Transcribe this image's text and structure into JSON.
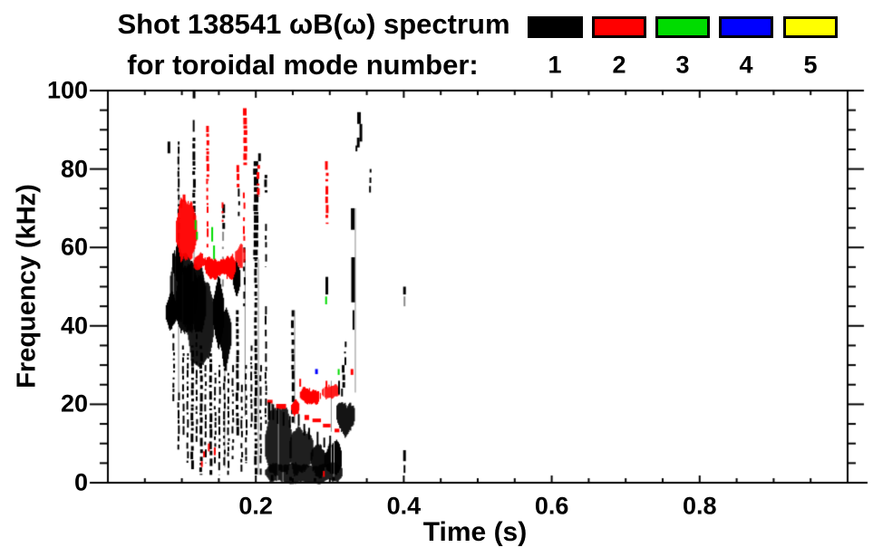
{
  "header": {
    "title_line1": "Shot 138541 ωB(ω) spectrum",
    "title_line2": "for toroidal mode number:"
  },
  "legend": {
    "entries": [
      {
        "label": "1",
        "color": "#000000"
      },
      {
        "label": "2",
        "color": "#ff0000"
      },
      {
        "label": "3",
        "color": "#00dc00"
      },
      {
        "label": "4",
        "color": "#0000ff"
      },
      {
        "label": "5",
        "color": "#ffff00"
      }
    ]
  },
  "chart_data": {
    "type": "scatter",
    "subtype": "mode-spectrogram",
    "title": "Shot 138541 ωB(ω) spectrum for toroidal mode number: 1 2 3 4 5",
    "xlabel": "Time (s)",
    "ylabel": "Frequency (kHz)",
    "xlim": [
      0,
      1.0
    ],
    "ylim": [
      0,
      100
    ],
    "grid": false,
    "legend_position": "top-right",
    "axis_color": "#000000",
    "background": "#ffffff",
    "xticks": {
      "major": [
        {
          "v": 0.2,
          "label": "0.2"
        },
        {
          "v": 0.4,
          "label": "0.4"
        },
        {
          "v": 0.6,
          "label": "0.6"
        },
        {
          "v": 0.8,
          "label": "0.8"
        }
      ],
      "minor_step": 0.05
    },
    "yticks": {
      "major": [
        {
          "v": 0,
          "label": "0"
        },
        {
          "v": 20,
          "label": "20"
        },
        {
          "v": 40,
          "label": "40"
        },
        {
          "v": 60,
          "label": "60"
        },
        {
          "v": 80,
          "label": "80"
        },
        {
          "v": 100,
          "label": "100"
        }
      ],
      "minor_step": 5
    },
    "palette": {
      "k": "#000000",
      "r": "#ff0000",
      "g": "#00dc00",
      "b": "#0000ff",
      "y": "#ffff00",
      "gy": "#8a8a8a"
    },
    "marks": {
      "vlines": [
        [
          "gy",
          0.0956,
          23,
          87,
          1
        ],
        [
          "gy",
          0.1165,
          47,
          61,
          1
        ],
        [
          "gy",
          0.158,
          4,
          33,
          1
        ],
        [
          "gy",
          0.1855,
          17,
          60,
          1
        ],
        [
          "gy",
          0.2035,
          2,
          57,
          1
        ],
        [
          "gy",
          0.2525,
          15,
          44,
          1
        ],
        [
          "gy",
          0.302,
          13,
          26,
          1
        ],
        [
          "gy",
          0.3345,
          23,
          70,
          1
        ]
      ],
      "vstreaks": [
        [
          "k",
          0.0956,
          58,
          87,
          2,
          1,
          1
        ],
        [
          "k",
          0.1165,
          67,
          88,
          3,
          2,
          0.8
        ],
        [
          "r",
          0.135,
          77,
          91,
          3,
          3,
          0.7
        ],
        [
          "r",
          0.1345,
          60,
          77,
          2,
          4,
          1.6
        ],
        [
          "k",
          0.156,
          64,
          71,
          3,
          5,
          1
        ],
        [
          "gy",
          0.156,
          50,
          64,
          2,
          6,
          1.8
        ],
        [
          "r",
          0.1555,
          66.5,
          71.5,
          2,
          7,
          1.2
        ],
        [
          "r",
          0.176,
          75,
          81,
          3,
          8,
          1
        ],
        [
          "k",
          0.177,
          68,
          75,
          2,
          9,
          1.2
        ],
        [
          "r",
          0.1855,
          81,
          95.5,
          4,
          10,
          0.6
        ],
        [
          "r",
          0.184,
          60,
          74,
          2,
          11,
          1.6
        ],
        [
          "k",
          0.1845,
          45,
          60,
          2,
          12,
          1.6
        ],
        [
          "k",
          0.2,
          57,
          82,
          5,
          13,
          0.5
        ],
        [
          "r",
          0.2035,
          73,
          81,
          3,
          14,
          1
        ],
        [
          "k",
          0.2135,
          74,
          78.5,
          3,
          15,
          0.9
        ],
        [
          "k",
          0.2135,
          55,
          66,
          2,
          16,
          1.5
        ],
        [
          "r",
          0.296,
          66,
          82,
          3,
          17,
          1
        ],
        [
          "k",
          0.3545,
          74,
          80,
          2,
          18,
          1
        ],
        [
          "k",
          0.25,
          15,
          44,
          3,
          19,
          0.9
        ],
        [
          "k",
          0.3185,
          24,
          30,
          3,
          20,
          0.9
        ],
        [
          "k",
          0.321,
          30,
          36,
          2,
          21,
          1.2
        ],
        [
          "k",
          0.089,
          20,
          38,
          2,
          22,
          1
        ],
        [
          "k",
          0.0956,
          8,
          23,
          2,
          23,
          1
        ],
        [
          "k",
          0.102,
          12,
          35,
          2,
          24,
          1
        ],
        [
          "k",
          0.108,
          5,
          33,
          2,
          25,
          1
        ],
        [
          "k",
          0.114,
          3,
          35,
          3,
          26,
          0.8
        ],
        [
          "k",
          0.12,
          10,
          38,
          2,
          27,
          1
        ],
        [
          "k",
          0.126,
          2,
          35,
          3,
          28,
          0.8
        ],
        [
          "k",
          0.132,
          5,
          30,
          2,
          29,
          1
        ],
        [
          "k",
          0.139,
          2,
          33,
          3,
          30,
          0.8
        ],
        [
          "k",
          0.145,
          4,
          28,
          2,
          31,
          1
        ],
        [
          "k",
          0.151,
          2,
          30,
          2,
          32,
          0.9
        ],
        [
          "k",
          0.1575,
          4,
          32,
          2,
          33,
          1
        ],
        [
          "k",
          0.163,
          2,
          28,
          2,
          34,
          1
        ],
        [
          "k",
          0.169,
          6,
          30,
          2,
          35,
          1.1
        ],
        [
          "k",
          0.175,
          12,
          44,
          3,
          36,
          0.8
        ],
        [
          "k",
          0.181,
          2,
          25,
          2,
          37,
          1.1
        ],
        [
          "k",
          0.187,
          5,
          30,
          2,
          38,
          1
        ],
        [
          "k",
          0.194,
          14,
          35,
          2,
          39,
          1
        ],
        [
          "k",
          0.2,
          2,
          57,
          3,
          40,
          0.7
        ],
        [
          "k",
          0.2065,
          2,
          30,
          2,
          41,
          1
        ],
        [
          "k",
          0.2135,
          15,
          45,
          2,
          42,
          1
        ]
      ],
      "dashes": [
        [
          "k",
          0.0825,
          84,
          87,
          3
        ],
        [
          "k",
          0.1165,
          98,
          100,
          3
        ],
        [
          "k",
          0.116,
          89.5,
          92.5,
          2
        ],
        [
          "k",
          0.205,
          82,
          84,
          3
        ],
        [
          "r",
          0.099,
          70,
          72,
          3
        ],
        [
          "r",
          0.103,
          71.5,
          73.5,
          3
        ],
        [
          "g",
          0.1185,
          64.5,
          67,
          2
        ],
        [
          "g",
          0.1205,
          62,
          64,
          2
        ],
        [
          "g",
          0.141,
          61.5,
          65.2,
          2
        ],
        [
          "g",
          0.1435,
          57,
          60.5,
          2
        ],
        [
          "g",
          0.295,
          45.5,
          47.5,
          2
        ],
        [
          "g",
          0.312,
          27.5,
          29,
          2
        ],
        [
          "b",
          0.282,
          27.7,
          29,
          3
        ],
        [
          "r",
          0.33,
          27.5,
          29,
          3
        ],
        [
          "r",
          0.26,
          24.5,
          26.5,
          2
        ],
        [
          "r",
          0.2955,
          24,
          26,
          2
        ],
        [
          "r",
          0.13,
          6.5,
          8,
          2
        ],
        [
          "r",
          0.1365,
          8,
          10,
          2
        ],
        [
          "r",
          0.1445,
          7,
          9,
          2
        ],
        [
          "r",
          0.127,
          4,
          5.5,
          2
        ],
        [
          "r",
          0.292,
          1.5,
          3,
          2
        ],
        [
          "k",
          0.296,
          48,
          52.5,
          3
        ],
        [
          "k",
          0.3125,
          22.5,
          26,
          2
        ],
        [
          "k",
          0.3165,
          22,
          24,
          2
        ],
        [
          "k",
          0.3395,
          91.5,
          94.5,
          4
        ],
        [
          "k",
          0.342,
          87,
          91.5,
          3
        ],
        [
          "k",
          0.3385,
          85.5,
          88,
          3
        ],
        [
          "k",
          0.336,
          84.5,
          86,
          2
        ],
        [
          "k",
          0.332,
          39,
          44,
          2
        ],
        [
          "k",
          0.331,
          64.5,
          70,
          4
        ],
        [
          "k",
          0.3315,
          46,
          57.5,
          4
        ],
        [
          "k",
          0.401,
          48,
          50,
          3
        ],
        [
          "gy",
          0.401,
          45,
          47.5,
          2
        ],
        [
          "k",
          0.401,
          5.5,
          8.3,
          3
        ],
        [
          "k",
          0.401,
          2.5,
          4.5,
          2
        ],
        [
          "k",
          0.222,
          0.5,
          2,
          3
        ],
        [
          "k",
          0.247,
          0.5,
          1.5,
          3
        ],
        [
          "k",
          0.28,
          0.3,
          1.2,
          3
        ],
        [
          "k",
          0.305,
          0.5,
          1.5,
          3
        ],
        [
          "k",
          0.218,
          16,
          20.5,
          3
        ],
        [
          "k",
          0.2235,
          16,
          20,
          2
        ],
        [
          "k",
          0.2295,
          15,
          19,
          2
        ],
        [
          "k",
          0.2375,
          14.5,
          18,
          2
        ],
        [
          "k",
          0.246,
          14,
          17,
          2
        ],
        [
          "k",
          0.258,
          14.5,
          17.5,
          2
        ],
        [
          "k",
          0.2655,
          12,
          15,
          2
        ],
        [
          "k",
          0.272,
          11,
          14,
          2
        ],
        [
          "k",
          0.2835,
          9.5,
          13,
          2
        ],
        [
          "k",
          0.2925,
          9,
          11.5,
          2
        ],
        [
          "k",
          0.3005,
          9,
          12,
          2
        ],
        [
          "k",
          0.308,
          8,
          10.5,
          2
        ]
      ],
      "blobs": [
        [
          "k",
          0.077,
          0.092,
          40,
          47,
          2,
          101
        ],
        [
          "k",
          0.084,
          0.12,
          42,
          58,
          3,
          102
        ],
        [
          "k",
          0.092,
          0.132,
          37,
          54,
          3,
          103
        ],
        [
          "k",
          0.106,
          0.142,
          33,
          51,
          3,
          104
        ],
        [
          "k",
          0.087,
          0.101,
          51,
          61,
          2,
          105
        ],
        [
          "k",
          0.142,
          0.156,
          35,
          52,
          3,
          106
        ],
        [
          "k",
          0.152,
          0.166,
          30,
          45,
          3,
          107
        ],
        [
          "k",
          0.169,
          0.178,
          47,
          58,
          2.5,
          108
        ],
        [
          "r",
          0.092,
          0.119,
          57,
          71,
          3,
          109
        ],
        [
          "r",
          0.116,
          0.132,
          53,
          58.5,
          2,
          110
        ],
        [
          "r",
          0.131,
          0.172,
          52.5,
          58.5,
          2.2,
          111
        ],
        [
          "r",
          0.172,
          0.186,
          55,
          61,
          2,
          112
        ],
        [
          "k",
          0.2125,
          0.2475,
          2,
          17,
          3,
          113
        ],
        [
          "k",
          0.2455,
          0.2765,
          2,
          15,
          3,
          114
        ],
        [
          "k",
          0.274,
          0.2935,
          2,
          10.5,
          2,
          115
        ],
        [
          "k",
          0.2925,
          0.3155,
          2,
          9.5,
          2,
          116
        ],
        [
          "k",
          0.2125,
          0.316,
          0.8,
          4.5,
          1,
          121
        ],
        [
          "k",
          0.309,
          0.333,
          13.5,
          22.5,
          3,
          117
        ],
        [
          "r",
          0.2475,
          0.2575,
          17.5,
          21,
          1.5,
          118
        ],
        [
          "r",
          0.2595,
          0.2865,
          20.5,
          24.3,
          1.5,
          119
        ],
        [
          "r",
          0.2895,
          0.3125,
          21.3,
          24.8,
          1.5,
          120
        ]
      ],
      "dlines": [
        [
          "r",
          0.2155,
          20.5,
          0.3145,
          12.8,
          4,
          201
        ]
      ]
    }
  }
}
